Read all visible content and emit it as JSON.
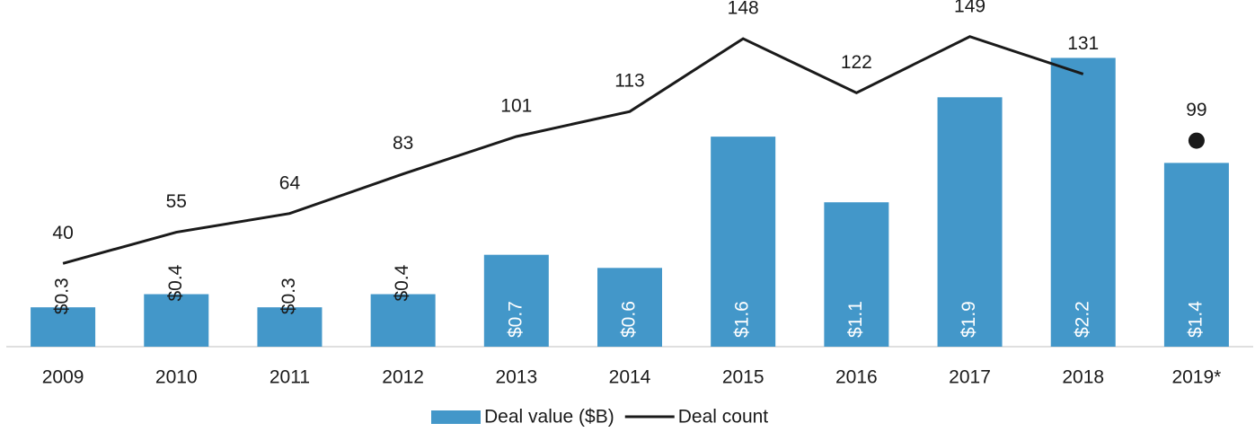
{
  "chart_data": {
    "type": "bar-line",
    "categories": [
      "2009",
      "2010",
      "2011",
      "2012",
      "2013",
      "2014",
      "2015",
      "2016",
      "2017",
      "2018",
      "2019*"
    ],
    "series": [
      {
        "name": "Deal value ($B)",
        "type": "bar",
        "color": "#4397c9",
        "values": [
          0.3,
          0.4,
          0.3,
          0.4,
          0.7,
          0.6,
          1.6,
          1.1,
          1.9,
          2.2,
          1.4
        ],
        "value_labels": [
          "$0.3",
          "$0.4",
          "$0.3",
          "$0.4",
          "$0.7",
          "$0.6",
          "$1.6",
          "$1.1",
          "$1.9",
          "$2.2",
          "$1.4"
        ]
      },
      {
        "name": "Deal count",
        "type": "line",
        "axis": "y2",
        "color": "#1a1a1a",
        "last_point_marker": "dot",
        "values": [
          40,
          55,
          64,
          83,
          101,
          113,
          148,
          122,
          149,
          131,
          99
        ]
      }
    ],
    "ylim": [
      0,
      2.6
    ],
    "y2lim": [
      0,
      164
    ],
    "grid": false,
    "legend": "bottom"
  }
}
